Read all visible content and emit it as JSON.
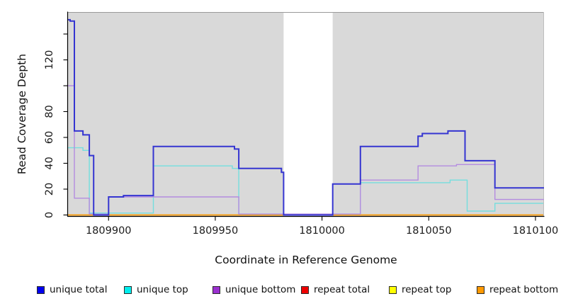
{
  "figure": {
    "x_axis_title": "Coordinate in Reference Genome",
    "y_axis_title": "Read Coverage Depth"
  },
  "chart_data": {
    "type": "line",
    "subtype": "step-coverage",
    "title": "",
    "xlabel": "Coordinate in Reference Genome",
    "ylabel": "Read Coverage Depth",
    "xlim": [
      1809881,
      1810104
    ],
    "ylim": [
      0,
      157
    ],
    "panel_background": "#d9d9d9",
    "no_data_region": {
      "start": 1809982,
      "end": 1810005,
      "color": "#ffffff"
    },
    "x_ticks": [
      1809900,
      1809950,
      1810000,
      1810050,
      1810100
    ],
    "x_tick_labels": [
      "1809900",
      "1809950",
      "1810000",
      "1810050",
      "1810100"
    ],
    "y_ticks": [
      0,
      20,
      40,
      60,
      80,
      100,
      120,
      140
    ],
    "y_tick_labels": [
      "0",
      "20",
      "40",
      "60",
      "80",
      "",
      "120",
      ""
    ],
    "grid": false,
    "legend_position": "bottom",
    "legend": [
      {
        "label": "unique total",
        "color": "#0000ee"
      },
      {
        "label": "unique top",
        "color": "#00eeee"
      },
      {
        "label": "unique bottom",
        "color": "#9b30d0"
      },
      {
        "label": "repeat total",
        "color": "#ee0000"
      },
      {
        "label": "repeat top",
        "color": "#ffff00"
      },
      {
        "label": "repeat bottom",
        "color": "#ff9900"
      }
    ],
    "series": [
      {
        "name": "unique total",
        "line_color": "#3535d1",
        "line_width": 2,
        "steps": [
          [
            1809881,
            151
          ],
          [
            1809882,
            150
          ],
          [
            1809884,
            65
          ],
          [
            1809888,
            62
          ],
          [
            1809891,
            46
          ],
          [
            1809893,
            0
          ],
          [
            1809900,
            14
          ],
          [
            1809907,
            15
          ],
          [
            1809921,
            53
          ],
          [
            1809959,
            51
          ],
          [
            1809961,
            36
          ],
          [
            1809981,
            33
          ],
          [
            1809982,
            0
          ],
          [
            1810005,
            24
          ],
          [
            1810018,
            53
          ],
          [
            1810045,
            61
          ],
          [
            1810047,
            63
          ],
          [
            1810059,
            65
          ],
          [
            1810067,
            42
          ],
          [
            1810081,
            21
          ],
          [
            1810104,
            21
          ]
        ]
      },
      {
        "name": "unique top",
        "line_color": "#74dede",
        "line_width": 1.4,
        "steps": [
          [
            1809881,
            52
          ],
          [
            1809888,
            50
          ],
          [
            1809891,
            1.5
          ],
          [
            1809921,
            38
          ],
          [
            1809958,
            36
          ],
          [
            1809961,
            0.7
          ],
          [
            1810018,
            25
          ],
          [
            1810060,
            27
          ],
          [
            1810068,
            3
          ],
          [
            1810081,
            9
          ],
          [
            1810104,
            9
          ]
        ]
      },
      {
        "name": "unique bottom",
        "line_color": "#b48ce0",
        "line_width": 1.4,
        "steps": [
          [
            1809881,
            100
          ],
          [
            1809884,
            13
          ],
          [
            1809891,
            0.7
          ],
          [
            1809900,
            14
          ],
          [
            1809961,
            0.7
          ],
          [
            1810018,
            27
          ],
          [
            1810045,
            38
          ],
          [
            1810063,
            39
          ],
          [
            1810081,
            12
          ],
          [
            1810104,
            12
          ]
        ]
      },
      {
        "name": "repeat total",
        "line_color": "#dd2222",
        "line_width": 1.2,
        "steps": [
          [
            1809881,
            0
          ],
          [
            1810104,
            0
          ]
        ]
      },
      {
        "name": "repeat top",
        "line_color": "#ffff2a",
        "line_width": 1.2,
        "steps": [
          [
            1809881,
            0
          ],
          [
            1810104,
            0
          ]
        ]
      },
      {
        "name": "repeat bottom",
        "line_color": "#ff9e00",
        "line_width": 1.6,
        "steps": [
          [
            1809881,
            0
          ],
          [
            1810104,
            0
          ]
        ]
      }
    ]
  }
}
